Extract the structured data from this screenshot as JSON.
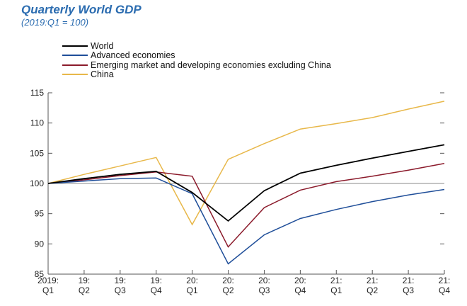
{
  "header": {
    "title": "Quarterly World GDP",
    "subtitle": "(2019:Q1 = 100)"
  },
  "chart_data": {
    "type": "line",
    "title": "Quarterly World GDP",
    "subtitle": "(2019:Q1 = 100)",
    "xlabel": "",
    "ylabel": "",
    "categories": [
      [
        "2019:",
        "Q1"
      ],
      [
        "19:",
        "Q2"
      ],
      [
        "19:",
        "Q3"
      ],
      [
        "19:",
        "Q4"
      ],
      [
        "20:",
        "Q1"
      ],
      [
        "20:",
        "Q2"
      ],
      [
        "20:",
        "Q3"
      ],
      [
        "20:",
        "Q4"
      ],
      [
        "21:",
        "Q1"
      ],
      [
        "21:",
        "Q2"
      ],
      [
        "21:",
        "Q3"
      ],
      [
        "21:",
        "Q4"
      ]
    ],
    "ylim": [
      85,
      115
    ],
    "yticks": [
      85,
      90,
      95,
      100,
      105,
      110,
      115
    ],
    "reference_line": 100,
    "grid": false,
    "legend_position": "top-left",
    "series": [
      {
        "name": "World",
        "color": "#000000",
        "values": [
          100,
          100.8,
          101.5,
          102.0,
          98.5,
          93.8,
          98.8,
          101.7,
          103.0,
          104.2,
          105.3,
          106.4
        ]
      },
      {
        "name": "Advanced economies",
        "color": "#1f4e99",
        "values": [
          100,
          100.4,
          100.8,
          100.9,
          98.3,
          86.7,
          91.5,
          94.2,
          95.7,
          97.0,
          98.1,
          99.0
        ]
      },
      {
        "name": "Emerging market and developing economies excluding China",
        "color": "#8b1a2b",
        "values": [
          100,
          100.6,
          101.3,
          101.9,
          101.2,
          89.5,
          96.0,
          98.9,
          100.3,
          101.2,
          102.2,
          103.3
        ]
      },
      {
        "name": "China",
        "color": "#e8b84a",
        "values": [
          100,
          101.5,
          102.9,
          104.3,
          93.2,
          104.0,
          106.6,
          109.0,
          109.9,
          110.9,
          112.3,
          113.6
        ]
      }
    ]
  }
}
